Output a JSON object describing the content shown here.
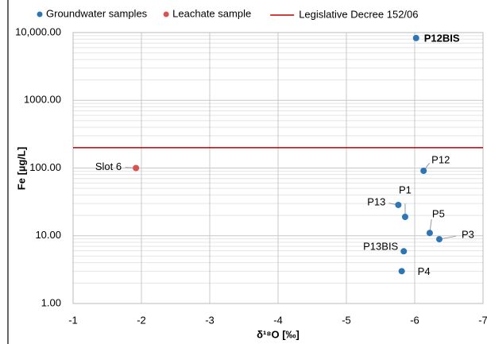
{
  "chart_data": {
    "type": "scatter",
    "x_label": "δ¹⁸O [‰]",
    "y_label": "Fe [µg/L]",
    "xlim": [
      -1,
      -7
    ],
    "xticks": [
      -1,
      -2,
      -3,
      -4,
      -5,
      -6,
      -7
    ],
    "ylim": [
      1,
      10000
    ],
    "log_y": true,
    "grid": true,
    "yticks": [
      {
        "value": 1,
        "label": "1.00"
      },
      {
        "value": 10,
        "label": "10.00"
      },
      {
        "value": 100,
        "label": "100.00"
      },
      {
        "value": 1000,
        "label": "1000.00"
      },
      {
        "value": 10000,
        "label": "10,000.00"
      }
    ],
    "legend": "top",
    "series": [
      {
        "name": "Groundwater samples",
        "color": "#2e75b6",
        "labels": [
          "P12BIS",
          "P12",
          "P13",
          "P1",
          "P5",
          "P3",
          "P13BIS",
          "P4"
        ],
        "x": [
          -6.02,
          -6.13,
          -5.76,
          -5.86,
          -6.22,
          -6.36,
          -5.84,
          -5.81
        ],
        "values": [
          8300,
          91,
          28.5,
          19,
          11,
          8.9,
          5.9,
          3.0
        ]
      },
      {
        "name": "Leachate sample",
        "color": "#d9534f",
        "labels": [
          "Slot 6"
        ],
        "x": [
          -1.92
        ],
        "values": [
          100
        ]
      }
    ],
    "threshold": {
      "name": "Legislative Decree 152/06",
      "color": "#c00000",
      "value": 200
    }
  }
}
